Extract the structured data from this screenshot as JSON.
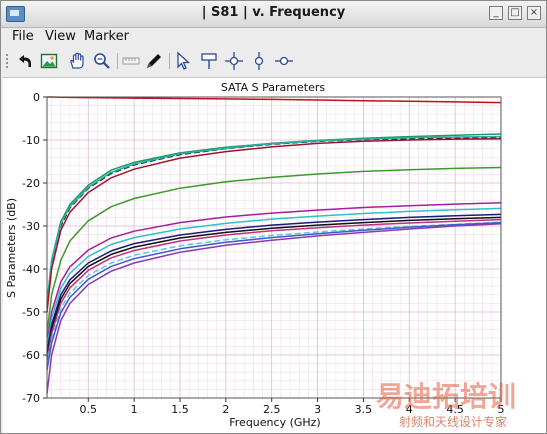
{
  "window": {
    "title": "| S81 | v. Frequency",
    "minimize_glyph": "_",
    "maximize_glyph": "□",
    "close_glyph": "×"
  },
  "menu": {
    "items": [
      {
        "label": "File"
      },
      {
        "label": "View"
      },
      {
        "label": "Marker"
      }
    ]
  },
  "toolbar": {
    "icons": [
      "undo-arrow-icon",
      "image-icon",
      "pan-hand-icon",
      "zoom-icon",
      "ruler-icon",
      "pen-icon",
      "pointer-arrow-icon",
      "marker-flag-icon",
      "crosshair-marker-icon",
      "vertical-marker-icon",
      "horizontal-marker-icon"
    ]
  },
  "watermark": {
    "line1": "易迪拓培训",
    "line2": "射频和天线设计专家"
  },
  "chart_data": {
    "type": "line",
    "title": "SATA S Parameters",
    "xlabel": "Frequency (GHz)",
    "ylabel": "S Parameters (dB)",
    "xlim": [
      0.05,
      5
    ],
    "ylim": [
      -70,
      0
    ],
    "x_ticks": [
      0.5,
      1,
      1.5,
      2,
      2.5,
      3,
      3.5,
      4,
      4.5,
      5
    ],
    "x_tick_labels": [
      "0.5",
      "1",
      "1.5",
      "2",
      "2.5",
      "3",
      "3.5",
      "4",
      "4.5",
      "5"
    ],
    "y_ticks": [
      0,
      -10,
      -20,
      -30,
      -40,
      -50,
      -60,
      -70
    ],
    "y_tick_labels": [
      "0",
      "-10",
      "-20",
      "-30",
      "-40",
      "-50",
      "-60",
      "-70"
    ],
    "grid": true,
    "minor_grid": true,
    "x": [
      0.05,
      0.1,
      0.2,
      0.3,
      0.5,
      0.75,
      1,
      1.5,
      2,
      2.5,
      3,
      3.5,
      4,
      4.5,
      5
    ],
    "series": [
      {
        "color": "#c0101a",
        "dash": false,
        "values": [
          0,
          0,
          -0.05,
          -0.1,
          -0.15,
          -0.2,
          -0.25,
          -0.35,
          -0.45,
          -0.55,
          -0.7,
          -0.85,
          -1.0,
          -1.15,
          -1.3
        ]
      },
      {
        "color": "#1f9a5a",
        "dash": false,
        "values": [
          -48,
          -38,
          -29,
          -25,
          -20.5,
          -17,
          -15.2,
          -13,
          -11.7,
          -10.8,
          -10.1,
          -9.6,
          -9.2,
          -8.9,
          -8.6
        ]
      },
      {
        "color": "#2a2a2a",
        "dash": true,
        "values": [
          -49,
          -39,
          -30,
          -25.8,
          -21.2,
          -17.8,
          -15.8,
          -13.4,
          -12,
          -11,
          -10.3,
          -9.9,
          -9.7,
          -9.6,
          -9.5
        ]
      },
      {
        "color": "#23b0b0",
        "dash": false,
        "values": [
          -48.5,
          -38.5,
          -29.5,
          -25.5,
          -21,
          -17.5,
          -15.6,
          -13.2,
          -11.9,
          -10.9,
          -10.2,
          -9.8,
          -9.5,
          -9.3,
          -9.2
        ]
      },
      {
        "color": "#a01428",
        "dash": false,
        "values": [
          -50,
          -40,
          -31,
          -26.8,
          -22.2,
          -18.8,
          -16.8,
          -14.2,
          -12.7,
          -11.6,
          -10.8,
          -10.3,
          -10.0,
          -9.8,
          -9.7
        ]
      },
      {
        "color": "#3c9a2a",
        "dash": false,
        "values": [
          -55,
          -46,
          -38,
          -33.5,
          -28.8,
          -25.5,
          -23.6,
          -21.2,
          -19.7,
          -18.7,
          -17.9,
          -17.3,
          -16.9,
          -16.6,
          -16.4
        ]
      },
      {
        "color": "#a020a0",
        "dash": false,
        "values": [
          -57,
          -50,
          -43,
          -39.5,
          -35.6,
          -32.8,
          -31.2,
          -29.2,
          -27.9,
          -27,
          -26.3,
          -25.7,
          -25.3,
          -24.9,
          -24.6
        ]
      },
      {
        "color": "#30c0c8",
        "dash": false,
        "values": [
          -58,
          -51.5,
          -44.5,
          -41,
          -37.1,
          -34.3,
          -32.7,
          -30.7,
          -29.4,
          -28.4,
          -27.7,
          -27.1,
          -26.6,
          -26.2,
          -25.9
        ]
      },
      {
        "color": "#1a1a80",
        "dash": false,
        "values": [
          -59.5,
          -53,
          -46,
          -42.5,
          -38.6,
          -35.8,
          -34.1,
          -32.1,
          -30.8,
          -29.8,
          -29.1,
          -28.5,
          -28,
          -27.6,
          -27.3
        ]
      },
      {
        "color": "#101010",
        "dash": false,
        "values": [
          -60.5,
          -54,
          -47,
          -43.4,
          -39.4,
          -36.6,
          -34.9,
          -32.8,
          -31.5,
          -30.5,
          -29.8,
          -29.2,
          -28.7,
          -28.3,
          -28
        ]
      },
      {
        "color": "#c03080",
        "dash": false,
        "values": [
          -61.5,
          -55,
          -48,
          -44.4,
          -40.3,
          -37.4,
          -35.7,
          -33.5,
          -32.1,
          -31.1,
          -30.4,
          -29.8,
          -29.3,
          -28.9,
          -28.5
        ]
      },
      {
        "color": "#60c8d8",
        "dash": true,
        "values": [
          -62.5,
          -56.2,
          -49.2,
          -45.6,
          -41.5,
          -38.6,
          -36.8,
          -34.6,
          -33.2,
          -32.2,
          -31.4,
          -30.7,
          -30.1,
          -29.6,
          -29.1
        ]
      },
      {
        "color": "#3a5ad0",
        "dash": false,
        "values": [
          -63.5,
          -57.2,
          -50.2,
          -46.6,
          -42.4,
          -39.4,
          -37.6,
          -35.3,
          -33.8,
          -32.7,
          -31.8,
          -31,
          -30.3,
          -29.7,
          -29.2
        ]
      },
      {
        "color": "#8a3aaa",
        "dash": false,
        "values": [
          -69,
          -60,
          -52,
          -48,
          -43.6,
          -40.5,
          -38.6,
          -36.1,
          -34.5,
          -33.3,
          -32.3,
          -31.5,
          -30.7,
          -30,
          -29.5
        ]
      }
    ]
  }
}
